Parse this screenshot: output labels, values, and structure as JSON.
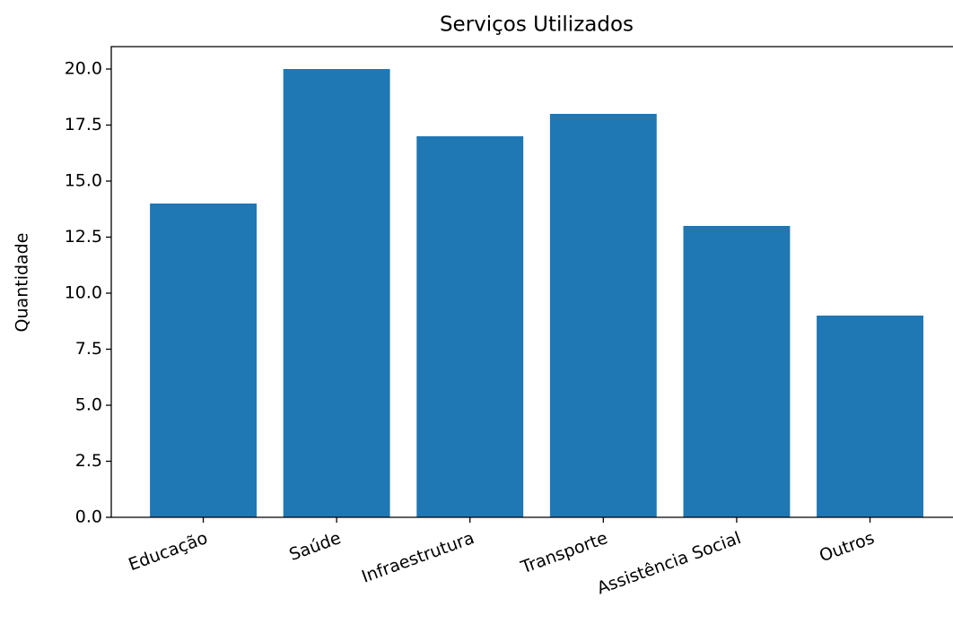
{
  "chart_data": {
    "type": "bar",
    "title": "Serviços Utilizados",
    "y_label": "Quantidade",
    "categories": [
      "Educação",
      "Saúde",
      "Infraestrutura",
      "Transporte",
      "Assistência Social",
      "Outros"
    ],
    "values": [
      14,
      20,
      17,
      18,
      13,
      9
    ],
    "color": "#1f77b4",
    "ylim": [
      0,
      21
    ],
    "yticks": [
      {
        "value": 0,
        "label": "0.0"
      },
      2.5,
      {
        "value": 5,
        "label": "5.0"
      },
      7.5,
      {
        "value": 10,
        "label": "10.0"
      },
      12.5,
      {
        "value": 15,
        "label": "15.0"
      },
      17.5,
      {
        "value": 20,
        "label": "20.0"
      }
    ],
    "grid": false
  }
}
